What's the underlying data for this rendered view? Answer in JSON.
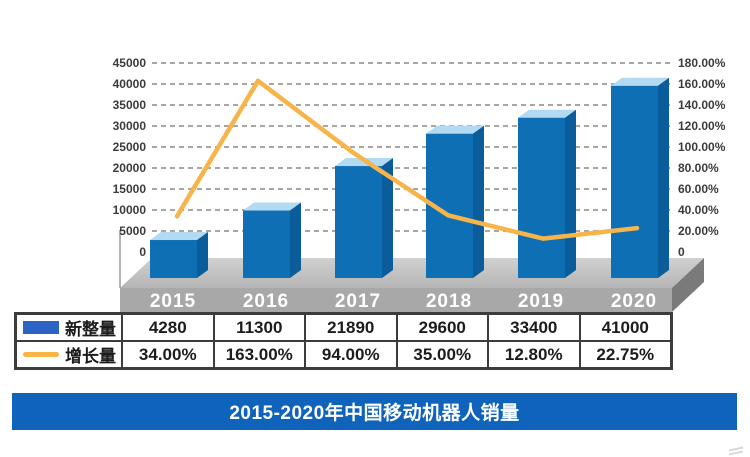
{
  "banner": {
    "title": "2015-2020年中国移动机器人销量",
    "bg_color": "#1063bb",
    "text_color": "#ffffff"
  },
  "chart_data": {
    "type": "combo",
    "style": "3d blue bars on gray 3d platform with dashed horizontal grid, white background",
    "categories": [
      "2015",
      "2016",
      "2017",
      "2018",
      "2019",
      "2020"
    ],
    "series": [
      {
        "name": "新整量",
        "type": "bar",
        "axis": "left",
        "color": "#0e6fb5",
        "values": [
          4280,
          11300,
          21890,
          29600,
          33400,
          41000
        ]
      },
      {
        "name": "增长量",
        "type": "line",
        "axis": "right",
        "color": "#f7b44a",
        "values_percent": [
          34.0,
          163.0,
          94.0,
          35.0,
          12.8,
          22.75
        ]
      }
    ],
    "left_axis": {
      "range": [
        0,
        45000
      ],
      "step": 5000,
      "tick_labels": [
        "45000",
        "40000",
        "35000",
        "30000",
        "25000",
        "20000",
        "15000",
        "10000",
        "5000",
        "0"
      ]
    },
    "right_axis": {
      "range_percent": [
        0,
        180
      ],
      "step_percent": 20,
      "tick_labels": [
        "180.00%",
        "160.00%",
        "140.00%",
        "120.00%",
        "100.00%",
        "80.00%",
        "60.00%",
        "40.00%",
        "20.00%",
        "0"
      ]
    },
    "grid": {
      "horizontal": true,
      "style": "dashed",
      "color": "#aba59f"
    },
    "legend_position": "table-left"
  },
  "table": {
    "rows": [
      {
        "legend": "新整量",
        "swatch": "bar",
        "values": [
          "4280",
          "11300",
          "21890",
          "29600",
          "33400",
          "41000"
        ]
      },
      {
        "legend": "增长量",
        "swatch": "line",
        "values": [
          "34.00%",
          "163.00%",
          "94.00%",
          "35.00%",
          "12.80%",
          "22.75%"
        ]
      }
    ]
  },
  "colors": {
    "bar_front": "#0e6fb5",
    "bar_top": "#b3daf3",
    "bar_side": "#0a5c9a",
    "line": "#f7b44a",
    "platform_top_light": "#d0d0d0",
    "platform_top_dark": "#b5b5b5",
    "platform_front": "#a8a8a8",
    "platform_side": "#7a7a7a",
    "legend_bar_swatch": "#2d63c5",
    "legend_line_swatch": "#f9b645",
    "axis_text": "#3b3b3b",
    "table_border": "#3c3c3c",
    "table_text": "#1c1c1c",
    "banner_bg": "#1063bb"
  }
}
